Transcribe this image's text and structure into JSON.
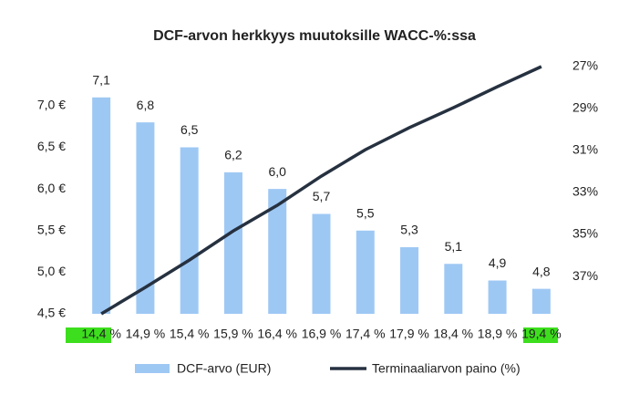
{
  "chart_data": {
    "type": "bar-line",
    "title": "DCF-arvon herkkyys muutoksille WACC-%:ssa",
    "categories": [
      "14,4 %",
      "14,9 %",
      "15,4 %",
      "15,9 %",
      "16,4 %",
      "16,9 %",
      "17,4 %",
      "17,9 %",
      "18,4 %",
      "18,9 %",
      "19,4 %"
    ],
    "series": [
      {
        "name": "DCF-arvo (EUR)",
        "type": "bar",
        "color": "#9ec8f4",
        "values": [
          7.1,
          6.8,
          6.5,
          6.2,
          6.0,
          5.7,
          5.5,
          5.3,
          5.1,
          4.9,
          4.8
        ],
        "value_labels": [
          "7,1",
          "6,8",
          "6,5",
          "6,2",
          "6,0",
          "5,7",
          "5,5",
          "5,3",
          "5,1",
          "4,9",
          "4,8"
        ]
      },
      {
        "name": "Terminaaliarvon paino (%)",
        "type": "line",
        "color": "#263140",
        "axis": "y2",
        "values": [
          38.78,
          37.52,
          36.22,
          34.83,
          33.61,
          32.22,
          30.96,
          29.91,
          28.96,
          27.96,
          27.0
        ]
      }
    ],
    "ylim": [
      4.5,
      7.47
    ],
    "yticks": [
      {
        "value": 4.5,
        "label": "4,5 €"
      },
      {
        "value": 5.0,
        "label": "5,0 €"
      },
      {
        "value": 5.5,
        "label": "5,5 €"
      },
      {
        "value": 6.0,
        "label": "6,0 €"
      },
      {
        "value": 6.5,
        "label": "6,5 €"
      },
      {
        "value": 7.0,
        "label": "7,0 €"
      }
    ],
    "y2lim": [
      38.78,
      27.0
    ],
    "y2ticks": [
      {
        "value": 27,
        "label": "27%"
      },
      {
        "value": 29,
        "label": "29%"
      },
      {
        "value": 31,
        "label": "31%"
      },
      {
        "value": 33,
        "label": "33%"
      },
      {
        "value": 35,
        "label": "35%"
      },
      {
        "value": 37,
        "label": "37%"
      }
    ],
    "grid": false
  }
}
